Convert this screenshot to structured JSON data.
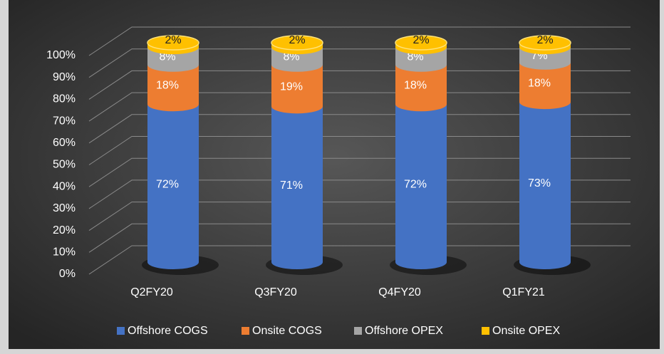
{
  "chart_data": {
    "type": "stacked-cylinder",
    "categories": [
      "Q2FY20",
      "Q3FY20",
      "Q4FY20",
      "Q1FY21"
    ],
    "series": [
      {
        "name": "Offshore COGS",
        "color": "#4472c4",
        "values": [
          72,
          71,
          72,
          73
        ],
        "value_labels": [
          "72%",
          "71%",
          "72%",
          "73%"
        ]
      },
      {
        "name": "Onsite COGS",
        "color": "#ed7d31",
        "values": [
          18,
          19,
          18,
          18
        ],
        "value_labels": [
          "18%",
          "19%",
          "18%",
          "18%"
        ]
      },
      {
        "name": "Offshore OPEX",
        "color": "#a5a5a5",
        "values": [
          8,
          8,
          8,
          7
        ],
        "value_labels": [
          "8%",
          "8%",
          "8%",
          "7%"
        ]
      },
      {
        "name": "Onsite OPEX",
        "color": "#ffc000",
        "values": [
          2,
          2,
          2,
          2
        ],
        "value_labels": [
          "2%",
          "2%",
          "2%",
          "2%"
        ]
      }
    ],
    "ylim": [
      0,
      100
    ],
    "yticks": [
      {
        "value": 0,
        "label": "0%"
      },
      {
        "value": 10,
        "label": "10%"
      },
      {
        "value": 20,
        "label": "20%"
      },
      {
        "value": 30,
        "label": "30%"
      },
      {
        "value": 40,
        "label": "40%"
      },
      {
        "value": 50,
        "label": "50%"
      },
      {
        "value": 60,
        "label": "60%"
      },
      {
        "value": 70,
        "label": "70%"
      },
      {
        "value": 80,
        "label": "80%"
      },
      {
        "value": 90,
        "label": "90%"
      },
      {
        "value": 100,
        "label": "100%"
      }
    ],
    "grid": true,
    "legend": "bottom"
  }
}
